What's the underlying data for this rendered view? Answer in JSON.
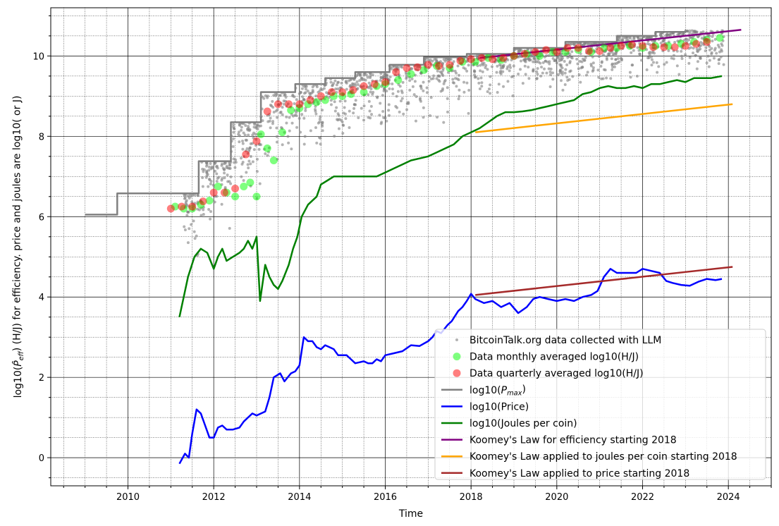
{
  "chart_data": {
    "type": "line",
    "title": "",
    "xlabel": "Time",
    "ylabel": "log10($\\hat{P}_{eff}$) (H/J) for efficiency. price and joules are log10($ or J)",
    "xlim": [
      2008.2,
      2025.0
    ],
    "ylim": [
      -0.7,
      11.2
    ],
    "x_ticks": [
      2010,
      2012,
      2014,
      2016,
      2018,
      2020,
      2022,
      2024
    ],
    "y_ticks": [
      0,
      2,
      4,
      6,
      8,
      10
    ],
    "grid": "major and minor",
    "legend": {
      "position": "lower-right",
      "entries": [
        {
          "label": "BitcoinTalk.org data collected with LLM",
          "marker": "dot",
          "color": "#808080"
        },
        {
          "label": "Data monthly averaged log10(H/J)",
          "marker": "circle",
          "color": "#00ff00"
        },
        {
          "label": "Data quarterly averaged log10(H/J)",
          "marker": "circle",
          "color": "#ff0000"
        },
        {
          "label": "log10($P_{max}$)",
          "marker": "line",
          "color": "#808080"
        },
        {
          "label": "log10(Price)",
          "marker": "line",
          "color": "#0000ff"
        },
        {
          "label": "log10(Joules per coin)",
          "marker": "line",
          "color": "#008000"
        },
        {
          "label": "Koomey's Law for efficiency starting 2018",
          "marker": "line",
          "color": "#800080"
        },
        {
          "label": "Koomey's Law applied to joules per coin starting 2018",
          "marker": "line",
          "color": "#ffa500"
        },
        {
          "label": "Koomey's Law applied to price starting 2018",
          "marker": "line",
          "color": "#a52a2a"
        }
      ]
    },
    "series": [
      {
        "name": "log10($P_{max}$)",
        "kind": "step",
        "color": "#808080",
        "x": [
          2009.0,
          2009.75,
          2009.75,
          2011.65,
          2011.65,
          2012.4,
          2012.4,
          2013.1,
          2013.1,
          2013.9,
          2013.9,
          2014.6,
          2014.6,
          2015.3,
          2015.3,
          2016.1,
          2016.1,
          2016.9,
          2016.9,
          2017.9,
          2017.9,
          2019.0,
          2019.0,
          2020.2,
          2020.2,
          2021.4,
          2021.4,
          2022.3,
          2022.3,
          2023.0,
          2023.0
        ],
        "y": [
          6.05,
          6.05,
          6.58,
          6.58,
          7.38,
          7.38,
          8.35,
          8.35,
          9.1,
          9.1,
          9.3,
          9.3,
          9.45,
          9.45,
          9.6,
          9.6,
          9.78,
          9.78,
          9.97,
          9.97,
          10.05,
          10.05,
          10.2,
          10.2,
          10.35,
          10.35,
          10.5,
          10.5,
          10.6,
          10.6,
          10.65
        ]
      },
      {
        "name": "log10(Price)",
        "kind": "line",
        "color": "#0000ff",
        "x": [
          2011.2,
          2011.33,
          2011.42,
          2011.5,
          2011.6,
          2011.7,
          2011.8,
          2011.9,
          2012.0,
          2012.1,
          2012.2,
          2012.3,
          2012.45,
          2012.6,
          2012.7,
          2012.8,
          2012.9,
          2013.0,
          2013.2,
          2013.3,
          2013.4,
          2013.55,
          2013.65,
          2013.8,
          2013.9,
          2014.0,
          2014.1,
          2014.2,
          2014.3,
          2014.4,
          2014.5,
          2014.6,
          2014.7,
          2014.8,
          2014.9,
          2015.1,
          2015.2,
          2015.3,
          2015.5,
          2015.6,
          2015.7,
          2015.8,
          2015.9,
          2016.0,
          2016.2,
          2016.4,
          2016.6,
          2016.8,
          2017.0,
          2017.1,
          2017.2,
          2017.3,
          2017.45,
          2017.55,
          2017.7,
          2017.8,
          2017.9,
          2018.0,
          2018.1,
          2018.3,
          2018.5,
          2018.7,
          2018.9,
          2019.1,
          2019.3,
          2019.45,
          2019.6,
          2019.8,
          2020.0,
          2020.2,
          2020.4,
          2020.6,
          2020.8,
          2020.95,
          2021.1,
          2021.25,
          2021.4,
          2021.55,
          2021.7,
          2021.85,
          2022.0,
          2022.2,
          2022.4,
          2022.55,
          2022.7,
          2022.9,
          2023.1,
          2023.3,
          2023.5,
          2023.7,
          2023.85
        ],
        "y": [
          -0.15,
          0.1,
          0.0,
          0.6,
          1.2,
          1.1,
          0.8,
          0.5,
          0.5,
          0.75,
          0.8,
          0.7,
          0.7,
          0.75,
          0.9,
          1.0,
          1.1,
          1.05,
          1.15,
          1.5,
          2.0,
          2.1,
          1.9,
          2.1,
          2.15,
          2.3,
          3.0,
          2.9,
          2.9,
          2.75,
          2.7,
          2.8,
          2.75,
          2.7,
          2.55,
          2.55,
          2.45,
          2.35,
          2.4,
          2.35,
          2.35,
          2.45,
          2.4,
          2.55,
          2.6,
          2.65,
          2.8,
          2.78,
          2.9,
          3.0,
          3.15,
          3.1,
          3.3,
          3.4,
          3.65,
          3.75,
          3.9,
          4.08,
          3.95,
          3.85,
          3.9,
          3.75,
          3.85,
          3.6,
          3.75,
          3.95,
          4.0,
          3.95,
          3.9,
          3.95,
          3.9,
          4.0,
          4.05,
          4.15,
          4.5,
          4.7,
          4.6,
          4.6,
          4.6,
          4.6,
          4.7,
          4.65,
          4.6,
          4.4,
          4.35,
          4.3,
          4.28,
          4.38,
          4.45,
          4.42,
          4.45
        ]
      },
      {
        "name": "log10(Joules per coin)",
        "kind": "line",
        "color": "#008000",
        "x": [
          2011.2,
          2011.3,
          2011.4,
          2011.55,
          2011.7,
          2011.85,
          2012.0,
          2012.1,
          2012.2,
          2012.3,
          2012.45,
          2012.6,
          2012.7,
          2012.8,
          2012.9,
          2013.0,
          2013.08,
          2013.2,
          2013.3,
          2013.4,
          2013.5,
          2013.6,
          2013.75,
          2013.85,
          2013.95,
          2014.05,
          2014.2,
          2014.4,
          2014.5,
          2014.65,
          2014.8,
          2014.95,
          2015.2,
          2015.5,
          2015.8,
          2016.0,
          2016.2,
          2016.4,
          2016.6,
          2016.8,
          2017.0,
          2017.2,
          2017.4,
          2017.6,
          2017.8,
          2018.0,
          2018.2,
          2018.4,
          2018.6,
          2018.8,
          2019.0,
          2019.2,
          2019.4,
          2019.6,
          2019.8,
          2020.0,
          2020.2,
          2020.4,
          2020.6,
          2020.8,
          2021.0,
          2021.2,
          2021.4,
          2021.6,
          2021.8,
          2022.0,
          2022.2,
          2022.4,
          2022.6,
          2022.8,
          2023.0,
          2023.2,
          2023.4,
          2023.6,
          2023.85
        ],
        "y": [
          3.5,
          4.0,
          4.5,
          5.0,
          5.2,
          5.1,
          4.7,
          5.0,
          5.2,
          4.9,
          5.0,
          5.1,
          5.2,
          5.4,
          5.2,
          5.5,
          3.9,
          4.8,
          4.5,
          4.3,
          4.2,
          4.4,
          4.8,
          5.2,
          5.5,
          6.0,
          6.3,
          6.5,
          6.8,
          6.9,
          7.0,
          7.0,
          7.0,
          7.0,
          7.0,
          7.1,
          7.2,
          7.3,
          7.4,
          7.45,
          7.5,
          7.6,
          7.7,
          7.8,
          8.0,
          8.1,
          8.2,
          8.35,
          8.5,
          8.6,
          8.6,
          8.62,
          8.65,
          8.7,
          8.75,
          8.8,
          8.85,
          8.9,
          9.05,
          9.1,
          9.2,
          9.25,
          9.2,
          9.2,
          9.25,
          9.2,
          9.3,
          9.3,
          9.35,
          9.4,
          9.35,
          9.45,
          9.45,
          9.45,
          9.5
        ]
      },
      {
        "name": "Koomey's Law for efficiency starting 2018",
        "kind": "line",
        "color": "#800080",
        "x": [
          2018.2,
          2024.3
        ],
        "y": [
          9.95,
          10.65
        ]
      },
      {
        "name": "Koomey's Law applied to joules per coin starting 2018",
        "kind": "line",
        "color": "#ffa500",
        "x": [
          2018.1,
          2024.1
        ],
        "y": [
          8.1,
          8.8
        ]
      },
      {
        "name": "Koomey's Law applied to price starting 2018",
        "kind": "line",
        "color": "#a52a2a",
        "x": [
          2018.1,
          2024.1
        ],
        "y": [
          4.05,
          4.75
        ]
      },
      {
        "name": "Data monthly averaged log10(H/J)",
        "kind": "scatter",
        "color": "#00ff00",
        "x": [
          2011.1,
          2011.3,
          2011.5,
          2011.7,
          2011.9,
          2012.1,
          2012.3,
          2012.5,
          2012.7,
          2012.85,
          2013.0,
          2013.1,
          2013.25,
          2013.4,
          2013.6,
          2013.8,
          2014.0,
          2014.2,
          2014.4,
          2014.6,
          2014.8,
          2015.0,
          2015.2,
          2015.5,
          2015.8,
          2016.0,
          2016.3,
          2016.6,
          2016.9,
          2017.2,
          2017.5,
          2017.8,
          2018.1,
          2018.4,
          2018.7,
          2019.0,
          2019.3,
          2019.6,
          2019.9,
          2020.2,
          2020.5,
          2020.8,
          2021.1,
          2021.4,
          2021.7,
          2022.0,
          2022.3,
          2022.6,
          2022.9,
          2023.2,
          2023.5,
          2023.8
        ],
        "y": [
          6.25,
          6.2,
          6.2,
          6.3,
          6.4,
          6.75,
          6.6,
          6.5,
          6.75,
          6.85,
          6.5,
          8.05,
          7.7,
          7.4,
          8.1,
          8.65,
          8.7,
          8.8,
          8.85,
          8.9,
          9.0,
          9.0,
          9.05,
          9.1,
          9.25,
          9.3,
          9.4,
          9.55,
          9.65,
          9.75,
          9.7,
          9.85,
          9.85,
          9.95,
          9.9,
          10.0,
          10.05,
          10.0,
          10.1,
          10.1,
          10.15,
          10.1,
          10.2,
          10.2,
          10.25,
          10.2,
          10.25,
          10.25,
          10.3,
          10.35,
          10.4,
          10.45
        ]
      },
      {
        "name": "Data quarterly averaged log10(H/J)",
        "kind": "scatter",
        "color": "#ff0000",
        "x": [
          2011.0,
          2011.25,
          2011.5,
          2011.75,
          2012.0,
          2012.25,
          2012.5,
          2012.75,
          2013.0,
          2013.25,
          2013.5,
          2013.75,
          2014.0,
          2014.25,
          2014.5,
          2014.75,
          2015.0,
          2015.25,
          2015.5,
          2015.75,
          2016.0,
          2016.25,
          2016.5,
          2016.75,
          2017.0,
          2017.25,
          2017.5,
          2017.75,
          2018.0,
          2018.25,
          2018.5,
          2018.75,
          2019.0,
          2019.25,
          2019.5,
          2019.75,
          2020.0,
          2020.25,
          2020.5,
          2020.75,
          2021.0,
          2021.25,
          2021.5,
          2021.75,
          2022.0,
          2022.25,
          2022.5,
          2022.75,
          2023.0,
          2023.25,
          2023.5
        ],
        "y": [
          6.2,
          6.25,
          6.25,
          6.38,
          6.6,
          6.6,
          6.7,
          7.55,
          7.88,
          8.62,
          8.8,
          8.8,
          8.8,
          8.9,
          9.0,
          9.1,
          9.1,
          9.15,
          9.25,
          9.3,
          9.35,
          9.6,
          9.7,
          9.72,
          9.78,
          9.75,
          9.78,
          9.88,
          9.92,
          9.95,
          9.92,
          9.95,
          10.0,
          10.05,
          10.1,
          10.15,
          10.1,
          10.2,
          10.2,
          10.12,
          10.12,
          10.2,
          10.25,
          10.28,
          10.25,
          10.22,
          10.22,
          10.22,
          10.25,
          10.3,
          10.35
        ]
      }
    ]
  }
}
